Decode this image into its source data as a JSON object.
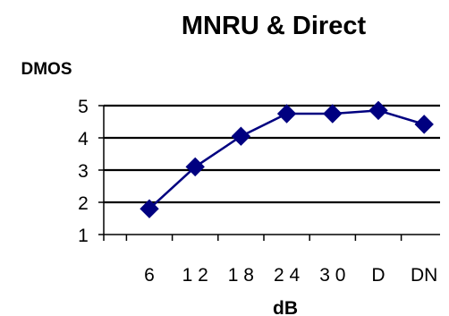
{
  "chart_data": {
    "type": "line",
    "title": "MNRU & Direct",
    "xlabel": "dB",
    "ylabel": "DMOS",
    "categories": [
      "6",
      "12",
      "18",
      "24",
      "30",
      "D",
      "DN"
    ],
    "category_tick_labels": [
      "6",
      "1 2",
      "1 8",
      "2 4",
      "3 0",
      "D",
      "DN"
    ],
    "series": [
      {
        "values": [
          1.8,
          3.1,
          4.05,
          4.75,
          4.75,
          4.85,
          4.42
        ]
      }
    ],
    "ylim": [
      1,
      5
    ],
    "yticks": [
      "1",
      "2",
      "3",
      "4",
      "5"
    ],
    "grid": true,
    "legend": "none",
    "colors": {
      "series": "#000080",
      "grid": "#000000",
      "axis": "#000000"
    }
  }
}
